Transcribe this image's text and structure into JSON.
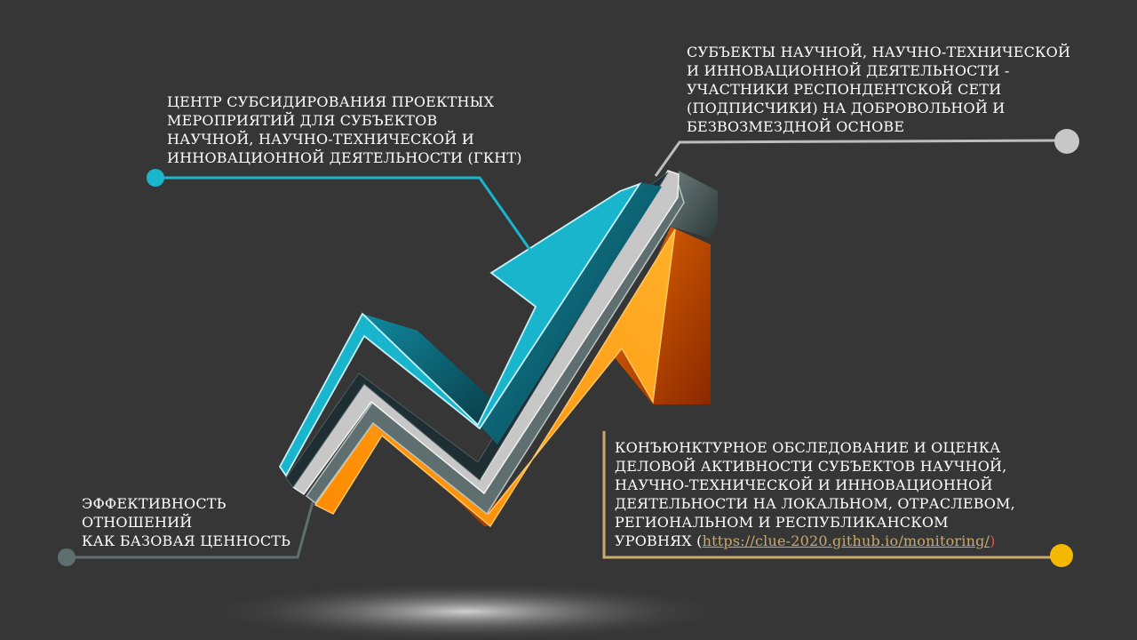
{
  "labels": {
    "top_left": {
      "lines": [
        "ЦЕНТР СУБСИДИРОВАНИЯ ПРОЕКТНЫХ",
        "МЕРОПРИЯТИЙ ДЛЯ СУБЪЕКТОВ",
        "НАУЧНОЙ, НАУЧНО-ТЕХНИЧЕСКОЙ И",
        "ИННОВАЦИОННОЙ ДЕЯТЕЛЬНОСТИ (ГКНТ)"
      ]
    },
    "top_right": {
      "lines": [
        "СУБЪЕКТЫ НАУЧНОЙ, НАУЧНО-ТЕХНИЧЕСКОЙ",
        "И ИННОВАЦИОННОЙ ДЕЯТЕЛЬНОСТИ -",
        "УЧАСТНИКИ РЕСПОНДЕНТСКОЙ СЕТИ",
        "(ПОДПИСЧИКИ) НА ДОБРОВОЛЬНОЙ И",
        "БЕЗВОЗМЕЗДНОЙ ОСНОВЕ"
      ]
    },
    "bottom_left": {
      "lines": [
        "ЭФФЕКТИВНОСТЬ",
        "ОТНОШЕНИЙ",
        "КАК БАЗОВАЯ ЦЕННОСТЬ"
      ]
    },
    "bottom_right": {
      "lines": [
        "КОНЪЮНКТУРНОЕ ОБСЛЕДОВАНИЕ И ОЦЕНКА",
        "ДЕЛОВОЙ АКТИВНОСТИ СУБЪЕКТОВ НАУЧНОЙ,",
        "НАУЧНО-ТЕХНИЧЕСКОЙ И ИННОВАЦИОННОЙ",
        "ДЕЯТЕЛЬНОСТИ НА ЛОКАЛЬНОМ, ОТРАСЛЕВОМ,",
        "РЕГИОНАЛЬНОМ И РЕСПУБЛИКАНСКОМ"
      ],
      "last_line_prefix": "УРОВНЯХ (",
      "link_text": "https://clue-2020.github.io/monitoring/",
      "last_line_suffix": ")"
    }
  },
  "colors": {
    "background": "#363636",
    "teal": "#19b5cc",
    "silver": "#c7c7c7",
    "slate": "#5f6f6f",
    "orange": "#ff9a0a",
    "gold": "#f5b800",
    "text": "#ffffff",
    "link": "#c9a96e"
  }
}
